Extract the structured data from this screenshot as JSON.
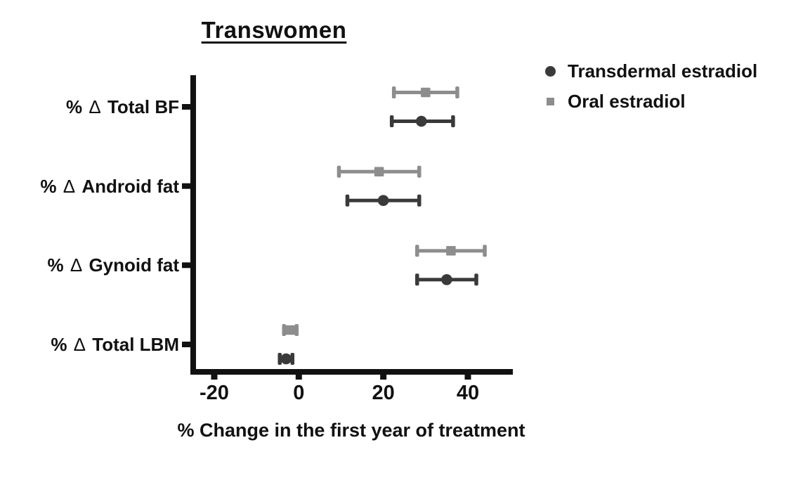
{
  "title": "Transwomen",
  "legend": [
    {
      "label": "Transdermal estradiol",
      "marker": "circle",
      "color": "#3a3a3a"
    },
    {
      "label": "Oral estradiol",
      "marker": "square",
      "color": "#8d8d8d"
    }
  ],
  "chart_data": {
    "type": "scatter",
    "subtype": "horizontal-dot-plot-with-error-bars",
    "title": "Transwomen",
    "xlabel": "% Change in the first year of treatment",
    "xlim": [
      -25.5,
      50.5
    ],
    "xticks": [
      -20,
      0,
      20,
      40
    ],
    "grid": false,
    "legend_position": "top-right",
    "axis_color": "#111111",
    "categories": [
      "% Δ Total BF",
      "% Δ Android fat",
      "% Δ Gynoid fat",
      "% Δ Total LBM"
    ],
    "series": [
      {
        "name": "Transdermal estradiol",
        "marker": "circle",
        "color": "#3a3a3a",
        "values": [
          29,
          20,
          35,
          -3
        ],
        "ci_low": [
          22,
          11.5,
          28,
          -4.5
        ],
        "ci_high": [
          36.5,
          28.5,
          42,
          -1.5
        ]
      },
      {
        "name": "Oral estradiol",
        "marker": "square",
        "color": "#8d8d8d",
        "values": [
          30,
          19,
          36,
          -2
        ],
        "ci_low": [
          22.5,
          9.5,
          28,
          -3.5
        ],
        "ci_high": [
          37.5,
          28.5,
          44,
          -0.5
        ]
      }
    ]
  }
}
